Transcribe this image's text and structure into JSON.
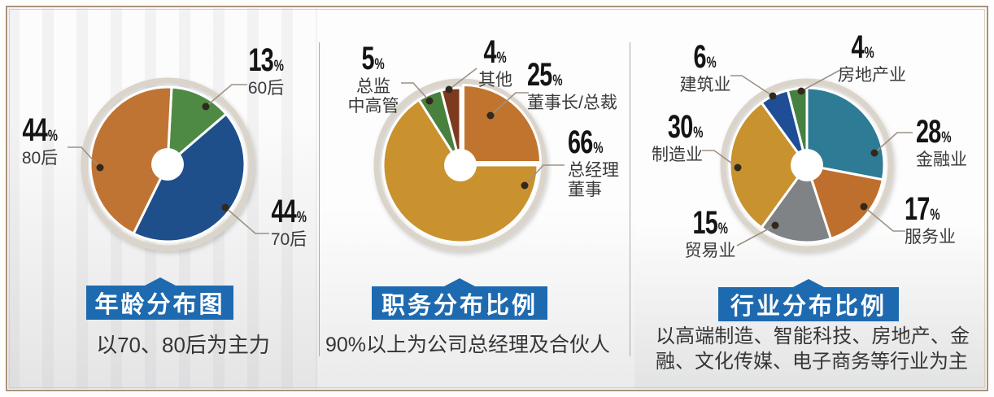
{
  "chart_data": [
    {
      "type": "pie",
      "donut": true,
      "title": "年龄分布图",
      "caption": "以70、80后为主力",
      "unit": "%",
      "legend_position": "callout-labels",
      "labels": [
        "60后",
        "70后",
        "80后"
      ],
      "values": [
        13,
        44,
        44
      ],
      "colors": [
        "#4e8a44",
        "#1f4f8b",
        "#c07434"
      ]
    },
    {
      "type": "pie",
      "donut": true,
      "title": "职务分布比例",
      "caption": "90%以上为公司总经理及合伙人",
      "unit": "%",
      "legend_position": "callout-labels",
      "labels": [
        "董事长/总裁",
        "总经理董事",
        "总监中高管",
        "其他"
      ],
      "values": [
        25,
        66,
        5,
        4
      ],
      "colors": [
        "#c1742e",
        "#c9922e",
        "#47813d",
        "#7d3a1e"
      ]
    },
    {
      "type": "pie",
      "donut": true,
      "title": "行业分布比例",
      "caption": "以高端制造、智能科技、房地产、金融、文化传媒、电子商务等行业为主",
      "unit": "%",
      "legend_position": "callout-labels",
      "labels": [
        "金融业",
        "服务业",
        "贸易业",
        "制造业",
        "建筑业",
        "房地产业"
      ],
      "values": [
        28,
        17,
        15,
        30,
        6,
        4
      ],
      "colors": [
        "#2d7b94",
        "#bf6f2d",
        "#7f8386",
        "#c8922e",
        "#1f4e96",
        "#468142"
      ]
    }
  ],
  "style": {
    "banner_blue": "#1e6ab0",
    "ring": "#dad4cb",
    "leader_line": "#9c9184",
    "leader_dot": "#32281c",
    "frame": "#aa9379"
  }
}
